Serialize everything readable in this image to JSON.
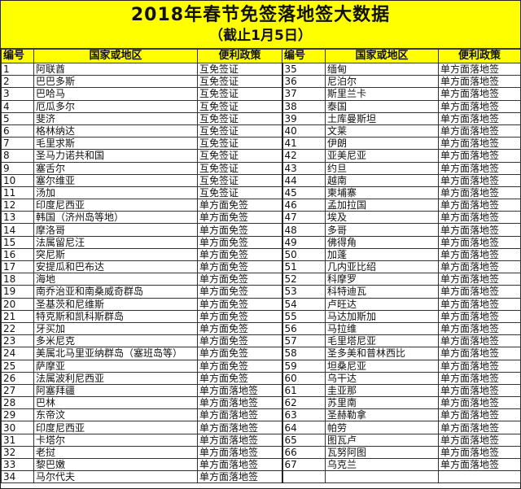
{
  "title": "2018年春节免签落地签大数据",
  "subtitle": "（截止1月5日）",
  "headers": {
    "num": "编号",
    "country": "国家或地区",
    "policy": "便利政策"
  },
  "left_rows": [
    [
      "1",
      "阿联酋",
      "互免签证"
    ],
    [
      "2",
      "巴巴多斯",
      "互免签证"
    ],
    [
      "3",
      "巴哈马",
      "互免签证"
    ],
    [
      "4",
      "厄瓜多尔",
      "互免签证"
    ],
    [
      "5",
      "斐济",
      "互免签证"
    ],
    [
      "6",
      "格林纳达",
      "互免签证"
    ],
    [
      "7",
      "毛里求斯",
      "互免签证"
    ],
    [
      "8",
      "圣马力诺共和国",
      "互免签证"
    ],
    [
      "9",
      "塞舌尔",
      "互免签证"
    ],
    [
      "10",
      "塞尔维亚",
      "互免签证"
    ],
    [
      "11",
      "汤加",
      "互免签证"
    ],
    [
      "12",
      "印度尼西亚",
      "单方面免签"
    ],
    [
      "13",
      "韩国（济州岛等地）",
      "单方面免签"
    ],
    [
      "14",
      "摩洛哥",
      "单方面免签"
    ],
    [
      "15",
      "法属留尼汪",
      "单方面免签"
    ],
    [
      "16",
      "突尼斯",
      "单方面免签"
    ],
    [
      "17",
      "安提瓜和巴布达",
      "单方面免签"
    ],
    [
      "18",
      "海地",
      "单方面免签"
    ],
    [
      "19",
      "南乔治亚和南桑威奇群岛",
      "单方面免签"
    ],
    [
      "20",
      "圣基茨和尼维斯",
      "单方面免签"
    ],
    [
      "21",
      "特克斯和凯科斯群岛",
      "单方面免签"
    ],
    [
      "22",
      "牙买加",
      "单方面免签"
    ],
    [
      "23",
      "多米尼克",
      "单方面免签"
    ],
    [
      "24",
      "美属北马里亚纳群岛（塞班岛等）",
      "单方面免签"
    ],
    [
      "25",
      "萨摩亚",
      "单方面免签"
    ],
    [
      "26",
      "法属波利尼西亚",
      "单方面免签"
    ],
    [
      "27",
      "阿塞拜疆",
      "单方面落地签"
    ],
    [
      "28",
      "巴林",
      "单方面落地签"
    ],
    [
      "29",
      "东帝汶",
      "单方面落地签"
    ],
    [
      "30",
      "印度尼西亚",
      "单方面落地签"
    ],
    [
      "31",
      "卡塔尔",
      "单方面落地签"
    ],
    [
      "32",
      "老挝",
      "单方面落地签"
    ],
    [
      "33",
      "黎巴嫩",
      "单方面落地签"
    ],
    [
      "34",
      "马尔代夫",
      "单方面落地签"
    ]
  ],
  "right_rows": [
    [
      "35",
      "缅甸",
      "单方面落地签"
    ],
    [
      "36",
      "尼泊尔",
      "单方面落地签"
    ],
    [
      "37",
      "斯里兰卡",
      "单方面落地签"
    ],
    [
      "38",
      "泰国",
      "单方面落地签"
    ],
    [
      "39",
      "土库曼斯坦",
      "单方面落地签"
    ],
    [
      "40",
      "文莱",
      "单方面落地签"
    ],
    [
      "41",
      "伊朗",
      "单方面落地签"
    ],
    [
      "42",
      "亚美尼亚",
      "单方面落地签"
    ],
    [
      "43",
      "约旦",
      "单方面落地签"
    ],
    [
      "44",
      "越南",
      "单方面落地签"
    ],
    [
      "45",
      "柬埔寨",
      "单方面落地签"
    ],
    [
      "46",
      "孟加拉国",
      "单方面落地签"
    ],
    [
      "47",
      "埃及",
      "单方面落地签"
    ],
    [
      "48",
      "多哥",
      "单方面落地签"
    ],
    [
      "49",
      "佛得角",
      "单方面落地签"
    ],
    [
      "50",
      "加蓬",
      "单方面落地签"
    ],
    [
      "51",
      "几内亚比绍",
      "单方面落地签"
    ],
    [
      "52",
      "科摩罗",
      "单方面落地签"
    ],
    [
      "53",
      "科特迪瓦",
      "单方面落地签"
    ],
    [
      "54",
      "卢旺达",
      "单方面落地签"
    ],
    [
      "55",
      "马达加斯加",
      "单方面落地签"
    ],
    [
      "56",
      "马拉维",
      "单方面落地签"
    ],
    [
      "57",
      "毛里塔尼亚",
      "单方面落地签"
    ],
    [
      "58",
      "圣多美和普林西比",
      "单方面落地签"
    ],
    [
      "59",
      "坦桑尼亚",
      "单方面落地签"
    ],
    [
      "60",
      "乌干达",
      "单方面落地签"
    ],
    [
      "61",
      "圭亚那",
      "单方面落地签"
    ],
    [
      "62",
      "苏里南",
      "单方面落地签"
    ],
    [
      "63",
      "圣赫勒拿",
      "单方面落地签"
    ],
    [
      "64",
      "帕劳",
      "单方面落地签"
    ],
    [
      "65",
      "图瓦卢",
      "单方面落地签"
    ],
    [
      "66",
      "瓦努阿图",
      "单方面落地签"
    ],
    [
      "67",
      "乌克兰",
      "单方面落地签"
    ]
  ],
  "colors": {
    "title_bg": "#ffff00"
  }
}
